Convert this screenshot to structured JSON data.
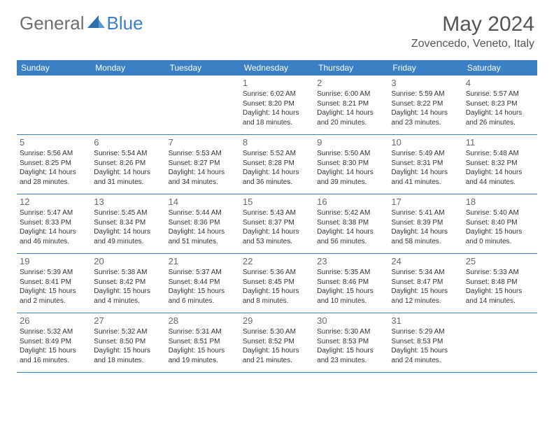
{
  "logo": {
    "general": "General",
    "blue": "Blue"
  },
  "title": "May 2024",
  "location": "Zovencedo, Veneto, Italy",
  "colors": {
    "header_bg": "#3b7fc4",
    "logo_gray": "#6f6f6f",
    "logo_blue": "#3b7fc4",
    "text": "#333333",
    "daynum": "#6b6b6b",
    "border": "#3b7fc4"
  },
  "weekdays": [
    "Sunday",
    "Monday",
    "Tuesday",
    "Wednesday",
    "Thursday",
    "Friday",
    "Saturday"
  ],
  "weeks": [
    [
      null,
      null,
      null,
      {
        "n": "1",
        "sr": "6:02 AM",
        "ss": "8:20 PM",
        "dl": "14 hours and 18 minutes."
      },
      {
        "n": "2",
        "sr": "6:00 AM",
        "ss": "8:21 PM",
        "dl": "14 hours and 20 minutes."
      },
      {
        "n": "3",
        "sr": "5:59 AM",
        "ss": "8:22 PM",
        "dl": "14 hours and 23 minutes."
      },
      {
        "n": "4",
        "sr": "5:57 AM",
        "ss": "8:23 PM",
        "dl": "14 hours and 26 minutes."
      }
    ],
    [
      {
        "n": "5",
        "sr": "5:56 AM",
        "ss": "8:25 PM",
        "dl": "14 hours and 28 minutes."
      },
      {
        "n": "6",
        "sr": "5:54 AM",
        "ss": "8:26 PM",
        "dl": "14 hours and 31 minutes."
      },
      {
        "n": "7",
        "sr": "5:53 AM",
        "ss": "8:27 PM",
        "dl": "14 hours and 34 minutes."
      },
      {
        "n": "8",
        "sr": "5:52 AM",
        "ss": "8:28 PM",
        "dl": "14 hours and 36 minutes."
      },
      {
        "n": "9",
        "sr": "5:50 AM",
        "ss": "8:30 PM",
        "dl": "14 hours and 39 minutes."
      },
      {
        "n": "10",
        "sr": "5:49 AM",
        "ss": "8:31 PM",
        "dl": "14 hours and 41 minutes."
      },
      {
        "n": "11",
        "sr": "5:48 AM",
        "ss": "8:32 PM",
        "dl": "14 hours and 44 minutes."
      }
    ],
    [
      {
        "n": "12",
        "sr": "5:47 AM",
        "ss": "8:33 PM",
        "dl": "14 hours and 46 minutes."
      },
      {
        "n": "13",
        "sr": "5:45 AM",
        "ss": "8:34 PM",
        "dl": "14 hours and 49 minutes."
      },
      {
        "n": "14",
        "sr": "5:44 AM",
        "ss": "8:36 PM",
        "dl": "14 hours and 51 minutes."
      },
      {
        "n": "15",
        "sr": "5:43 AM",
        "ss": "8:37 PM",
        "dl": "14 hours and 53 minutes."
      },
      {
        "n": "16",
        "sr": "5:42 AM",
        "ss": "8:38 PM",
        "dl": "14 hours and 56 minutes."
      },
      {
        "n": "17",
        "sr": "5:41 AM",
        "ss": "8:39 PM",
        "dl": "14 hours and 58 minutes."
      },
      {
        "n": "18",
        "sr": "5:40 AM",
        "ss": "8:40 PM",
        "dl": "15 hours and 0 minutes."
      }
    ],
    [
      {
        "n": "19",
        "sr": "5:39 AM",
        "ss": "8:41 PM",
        "dl": "15 hours and 2 minutes."
      },
      {
        "n": "20",
        "sr": "5:38 AM",
        "ss": "8:42 PM",
        "dl": "15 hours and 4 minutes."
      },
      {
        "n": "21",
        "sr": "5:37 AM",
        "ss": "8:44 PM",
        "dl": "15 hours and 6 minutes."
      },
      {
        "n": "22",
        "sr": "5:36 AM",
        "ss": "8:45 PM",
        "dl": "15 hours and 8 minutes."
      },
      {
        "n": "23",
        "sr": "5:35 AM",
        "ss": "8:46 PM",
        "dl": "15 hours and 10 minutes."
      },
      {
        "n": "24",
        "sr": "5:34 AM",
        "ss": "8:47 PM",
        "dl": "15 hours and 12 minutes."
      },
      {
        "n": "25",
        "sr": "5:33 AM",
        "ss": "8:48 PM",
        "dl": "15 hours and 14 minutes."
      }
    ],
    [
      {
        "n": "26",
        "sr": "5:32 AM",
        "ss": "8:49 PM",
        "dl": "15 hours and 16 minutes."
      },
      {
        "n": "27",
        "sr": "5:32 AM",
        "ss": "8:50 PM",
        "dl": "15 hours and 18 minutes."
      },
      {
        "n": "28",
        "sr": "5:31 AM",
        "ss": "8:51 PM",
        "dl": "15 hours and 19 minutes."
      },
      {
        "n": "29",
        "sr": "5:30 AM",
        "ss": "8:52 PM",
        "dl": "15 hours and 21 minutes."
      },
      {
        "n": "30",
        "sr": "5:30 AM",
        "ss": "8:53 PM",
        "dl": "15 hours and 23 minutes."
      },
      {
        "n": "31",
        "sr": "5:29 AM",
        "ss": "8:53 PM",
        "dl": "15 hours and 24 minutes."
      },
      null
    ]
  ]
}
